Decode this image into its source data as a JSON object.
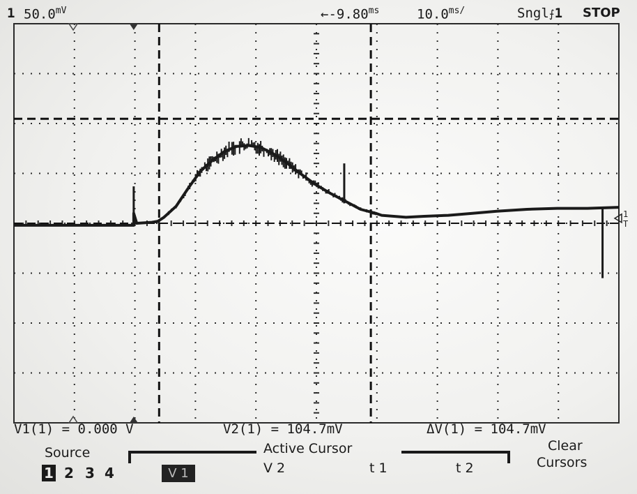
{
  "status": {
    "channel": "1",
    "scale": "50.0",
    "scale_unit": "mV",
    "delay": "←-9.80",
    "delay_unit": "ms",
    "timebase": "10.0",
    "timebase_unit": "ms/",
    "trigger_mode": "Sngl",
    "trigger_channel": "1",
    "run_state": "STOP"
  },
  "markers": {
    "trigger_level": "1",
    "ground": "T"
  },
  "readouts": {
    "v1": "V1(1) = 0.000 V",
    "v2": "V2(1) = 104.7mV",
    "dv": "ΔV(1) = 104.7mV"
  },
  "softkeys": {
    "source_title": "Source",
    "source_options": [
      "1",
      "2",
      "3",
      "4"
    ],
    "active_cursor_title": "Active Cursor",
    "cursors": {
      "v1": "V 1",
      "v2": "V 2",
      "t1": "t 1",
      "t2": "t 2"
    },
    "clear_line1": "Clear",
    "clear_line2": "Cursors"
  },
  "colors": {
    "background": "#f1f1ef",
    "trace": "#1a1a1a",
    "grid": "#2a2a2a"
  },
  "chart_data": {
    "type": "line",
    "title": "",
    "xlabel": "",
    "ylabel": "",
    "x_unit": "ms",
    "y_unit": "mV",
    "grid": true,
    "xlim": [
      -59.8,
      40.2
    ],
    "ylim": [
      -200,
      200
    ],
    "x": [
      -59.8,
      -40.0,
      -40.0,
      -39.5,
      -37.0,
      -36.0,
      -35.0,
      -33.0,
      -31.0,
      -29.0,
      -27.0,
      -25.0,
      -23.0,
      -21.0,
      -19.0,
      -17.0,
      -15.0,
      -12.5,
      -10.0,
      -7.5,
      -5.0,
      -2.5,
      0.0,
      1.0,
      3.0,
      5.0,
      8.0,
      12.0,
      16.0,
      20.0,
      25.0,
      30.0,
      35.0,
      40.2
    ],
    "y": [
      -2,
      -2,
      10,
      0,
      1,
      2,
      6,
      17,
      35,
      52,
      63,
      72,
      77,
      78,
      76,
      70,
      62,
      50,
      39,
      30,
      22,
      14,
      10,
      8,
      7,
      6,
      7,
      8,
      10,
      12,
      14,
      15,
      15,
      16
    ],
    "cursors": {
      "v1": 0.0,
      "v2": 104.7,
      "t1": -35.8,
      "t2": -0.8,
      "dv": 104.7
    }
  }
}
